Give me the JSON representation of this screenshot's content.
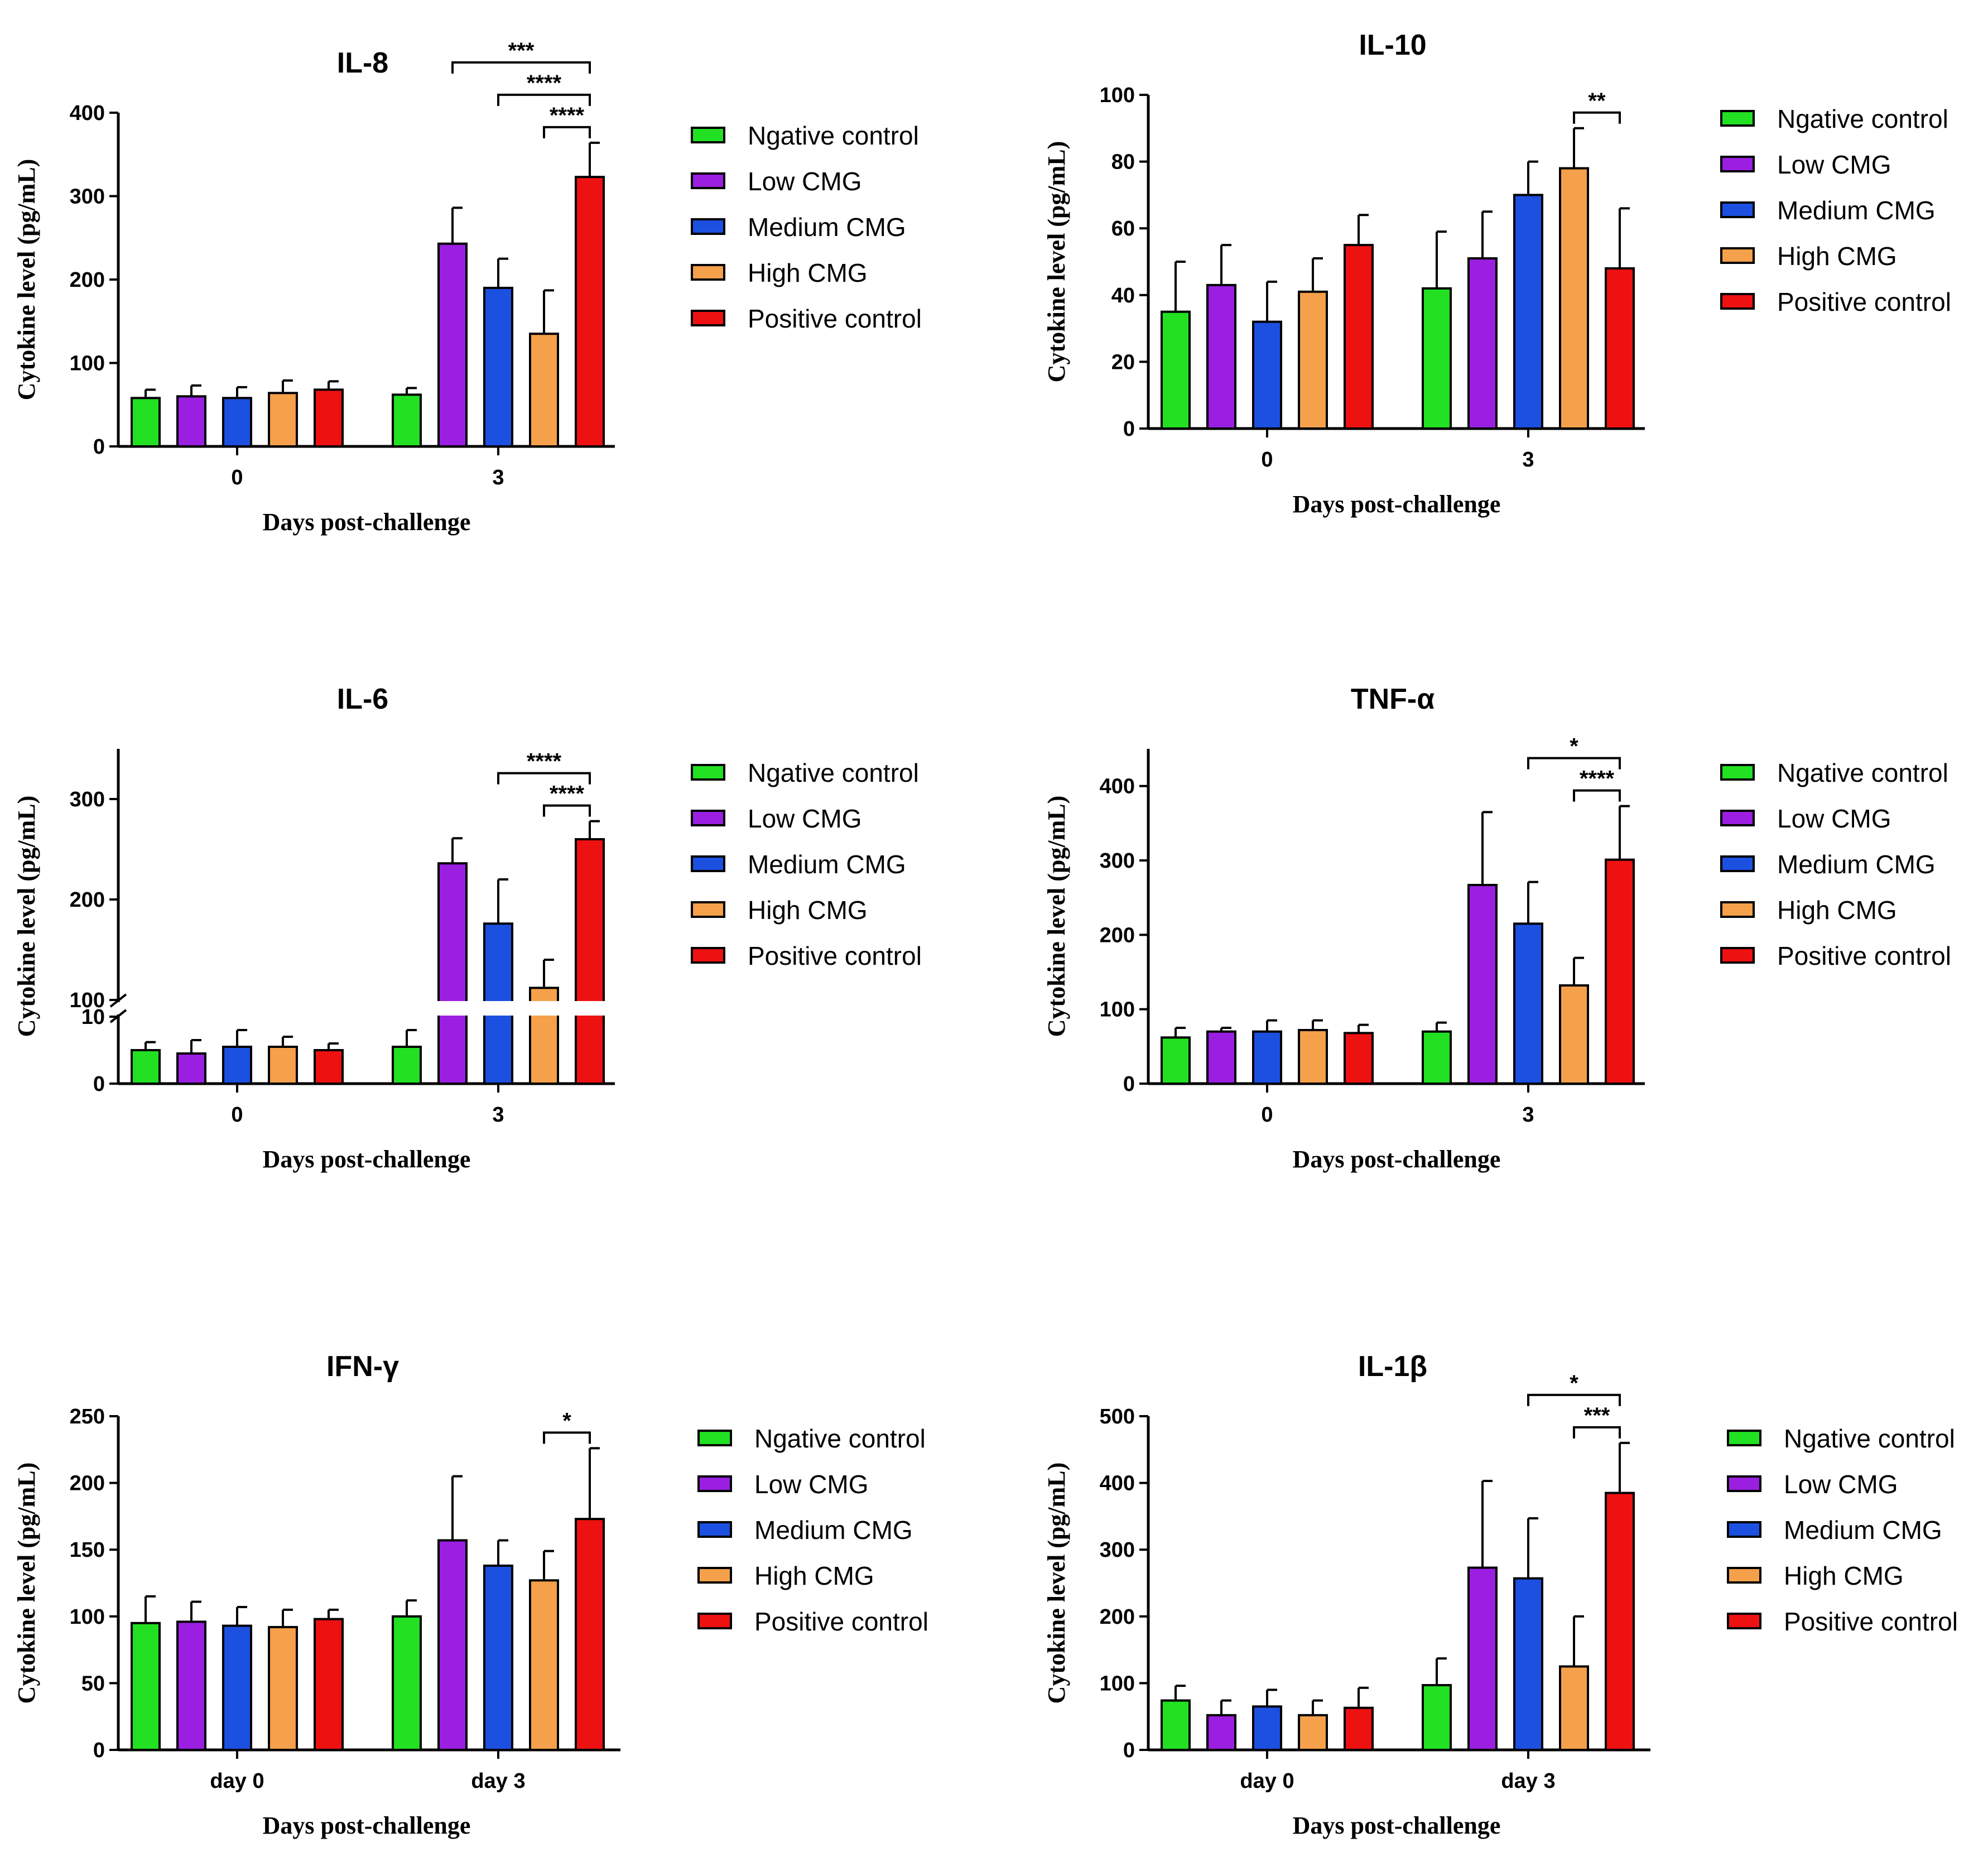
{
  "chart_data": [
    {
      "type": "bar",
      "title": "IL-8",
      "xlabel": "Days post-challenge",
      "ylabel": "Cytokine level (pg/mL)",
      "categories": [
        "0",
        "3"
      ],
      "ylim": [
        0,
        400
      ],
      "yticks": [
        0,
        100,
        200,
        300,
        400
      ],
      "legend_position": "right",
      "series": [
        {
          "name": "Ngative control",
          "color": "#22e022",
          "values": [
            58,
            62
          ],
          "errors": [
            10,
            8
          ]
        },
        {
          "name": "Low CMG",
          "color": "#9b1fe0",
          "values": [
            60,
            243
          ],
          "errors": [
            13,
            43
          ]
        },
        {
          "name": "Medium CMG",
          "color": "#1c50e0",
          "values": [
            58,
            190
          ],
          "errors": [
            13,
            35
          ]
        },
        {
          "name": "High CMG",
          "color": "#f5a04a",
          "values": [
            64,
            135
          ],
          "errors": [
            15,
            52
          ]
        },
        {
          "name": "Positive control",
          "color": "#ee1111",
          "values": [
            68,
            323
          ],
          "errors": [
            10,
            41
          ]
        }
      ],
      "significance": [
        {
          "from_series": 1,
          "to_series": 4,
          "category": 1,
          "label": "***"
        },
        {
          "from_series": 2,
          "to_series": 4,
          "category": 1,
          "label": "****"
        },
        {
          "from_series": 3,
          "to_series": 4,
          "category": 1,
          "label": "****"
        }
      ]
    },
    {
      "type": "bar",
      "title": "IL-10",
      "xlabel": "Days post-challenge",
      "ylabel": "Cytokine level (pg/mL)",
      "categories": [
        "0",
        "3"
      ],
      "ylim": [
        0,
        100
      ],
      "yticks": [
        0,
        20,
        40,
        60,
        80,
        100
      ],
      "legend_position": "right",
      "series": [
        {
          "name": "Ngative control",
          "color": "#22e022",
          "values": [
            35,
            42
          ],
          "errors": [
            15,
            17
          ]
        },
        {
          "name": "Low CMG",
          "color": "#9b1fe0",
          "values": [
            43,
            51
          ],
          "errors": [
            12,
            14
          ]
        },
        {
          "name": "Medium CMG",
          "color": "#1c50e0",
          "values": [
            32,
            70
          ],
          "errors": [
            12,
            10
          ]
        },
        {
          "name": "High CMG",
          "color": "#f5a04a",
          "values": [
            41,
            78
          ],
          "errors": [
            10,
            12
          ]
        },
        {
          "name": "Positive control",
          "color": "#ee1111",
          "values": [
            55,
            48
          ],
          "errors": [
            9,
            18
          ]
        }
      ],
      "significance": [
        {
          "from_series": 3,
          "to_series": 4,
          "category": 1,
          "label": "**"
        }
      ]
    },
    {
      "type": "bar",
      "title": "IL-6",
      "xlabel": "Days post-challenge",
      "ylabel": "Cytokine level (pg/mL)",
      "categories": [
        "0",
        "3"
      ],
      "ylim": [
        0,
        350
      ],
      "y_axis_break": {
        "lower_range": [
          0,
          10
        ],
        "upper_range": [
          100,
          350
        ]
      },
      "yticks": [
        0,
        10,
        100,
        200,
        300
      ],
      "legend_position": "right",
      "series": [
        {
          "name": "Ngative control",
          "color": "#22e022",
          "values": [
            5,
            5.5
          ],
          "errors": [
            1.2,
            2.5
          ]
        },
        {
          "name": "Low CMG",
          "color": "#9b1fe0",
          "values": [
            4.5,
            236
          ],
          "errors": [
            2,
            25
          ]
        },
        {
          "name": "Medium CMG",
          "color": "#1c50e0",
          "values": [
            5.5,
            176
          ],
          "errors": [
            2.5,
            44
          ]
        },
        {
          "name": "High CMG",
          "color": "#f5a04a",
          "values": [
            5.5,
            112
          ],
          "errors": [
            1.5,
            28
          ]
        },
        {
          "name": "Positive control",
          "color": "#ee1111",
          "values": [
            5,
            260
          ],
          "errors": [
            1,
            18
          ]
        }
      ],
      "significance": [
        {
          "from_series": 2,
          "to_series": 4,
          "category": 1,
          "label": "****"
        },
        {
          "from_series": 3,
          "to_series": 4,
          "category": 1,
          "label": "****"
        }
      ]
    },
    {
      "type": "bar",
      "title": "TNF-α",
      "xlabel": "Days post-challenge",
      "ylabel": "Cytokine level (pg/mL)",
      "categories": [
        "0",
        "3"
      ],
      "ylim": [
        0,
        450
      ],
      "yticks": [
        0,
        100,
        200,
        300,
        400
      ],
      "legend_position": "right",
      "series": [
        {
          "name": "Ngative control",
          "color": "#22e022",
          "values": [
            62,
            70
          ],
          "errors": [
            13,
            12
          ]
        },
        {
          "name": "Low CMG",
          "color": "#9b1fe0",
          "values": [
            70,
            267
          ],
          "errors": [
            5,
            98
          ]
        },
        {
          "name": "Medium CMG",
          "color": "#1c50e0",
          "values": [
            70,
            215
          ],
          "errors": [
            15,
            56
          ]
        },
        {
          "name": "High CMG",
          "color": "#f5a04a",
          "values": [
            72,
            132
          ],
          "errors": [
            13,
            37
          ]
        },
        {
          "name": "Positive control",
          "color": "#ee1111",
          "values": [
            68,
            301
          ],
          "errors": [
            11,
            72
          ]
        }
      ],
      "significance": [
        {
          "from_series": 2,
          "to_series": 4,
          "category": 1,
          "label": "*"
        },
        {
          "from_series": 3,
          "to_series": 4,
          "category": 1,
          "label": "****"
        }
      ]
    },
    {
      "type": "bar",
      "title": "IFN-γ",
      "xlabel": "Days post-challenge",
      "ylabel": "Cytokine level (pg/mL)",
      "categories": [
        "day 0",
        "day 3"
      ],
      "ylim": [
        0,
        250
      ],
      "yticks": [
        0,
        50,
        100,
        150,
        200,
        250
      ],
      "legend_position": "right",
      "series": [
        {
          "name": "Ngative control",
          "color": "#22e022",
          "values": [
            95,
            100
          ],
          "errors": [
            20,
            12
          ]
        },
        {
          "name": "Low CMG",
          "color": "#9b1fe0",
          "values": [
            96,
            157
          ],
          "errors": [
            15,
            48
          ]
        },
        {
          "name": "Medium CMG",
          "color": "#1c50e0",
          "values": [
            93,
            138
          ],
          "errors": [
            14,
            19
          ]
        },
        {
          "name": "High CMG",
          "color": "#f5a04a",
          "values": [
            92,
            127
          ],
          "errors": [
            13,
            22
          ]
        },
        {
          "name": "Positive control",
          "color": "#ee1111",
          "values": [
            98,
            173
          ],
          "errors": [
            7,
            53
          ]
        }
      ],
      "significance": [
        {
          "from_series": 3,
          "to_series": 4,
          "category": 1,
          "label": "*"
        }
      ]
    },
    {
      "type": "bar",
      "title": "IL-1β",
      "xlabel": "Days post-challenge",
      "ylabel": "Cytokine level (pg/mL)",
      "categories": [
        "day 0",
        "day 3"
      ],
      "ylim": [
        0,
        500
      ],
      "yticks": [
        0,
        100,
        200,
        300,
        400,
        500
      ],
      "legend_position": "right",
      "series": [
        {
          "name": "Ngative control",
          "color": "#22e022",
          "values": [
            74,
            97
          ],
          "errors": [
            22,
            40
          ]
        },
        {
          "name": "Low CMG",
          "color": "#9b1fe0",
          "values": [
            52,
            273
          ],
          "errors": [
            22,
            130
          ]
        },
        {
          "name": "Medium CMG",
          "color": "#1c50e0",
          "values": [
            65,
            257
          ],
          "errors": [
            25,
            90
          ]
        },
        {
          "name": "High CMG",
          "color": "#f5a04a",
          "values": [
            52,
            125
          ],
          "errors": [
            22,
            75
          ]
        },
        {
          "name": "Positive control",
          "color": "#ee1111",
          "values": [
            63,
            385
          ],
          "errors": [
            30,
            75
          ]
        }
      ],
      "significance": [
        {
          "from_series": 2,
          "to_series": 4,
          "category": 1,
          "label": "*"
        },
        {
          "from_series": 3,
          "to_series": 4,
          "category": 1,
          "label": "***"
        }
      ]
    }
  ]
}
